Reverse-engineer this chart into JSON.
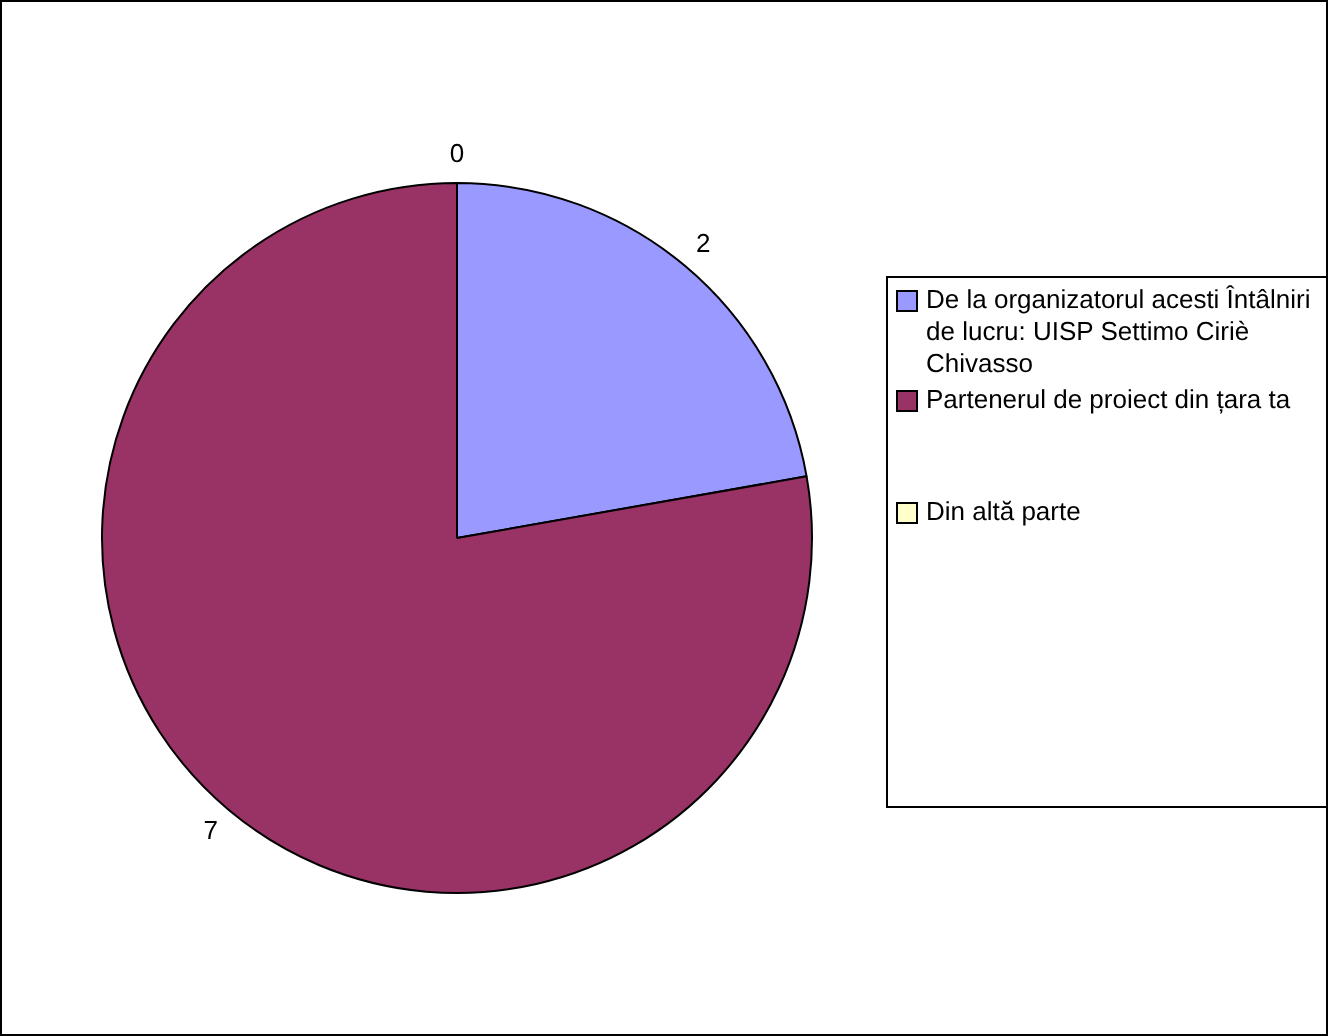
{
  "chart_data": {
    "type": "pie",
    "categories": [
      "De la organizatorul acesti Întâlniri de lucru: UISP Settimo Ciriè Chivasso",
      "Partenerul de proiect din țara ta",
      "Din altă parte"
    ],
    "values": [
      2,
      7,
      0
    ],
    "colors": [
      "#9999ff",
      "#993366",
      "#ffffcc"
    ],
    "value_labels": [
      "2",
      "7",
      "0"
    ],
    "legend": "right"
  }
}
